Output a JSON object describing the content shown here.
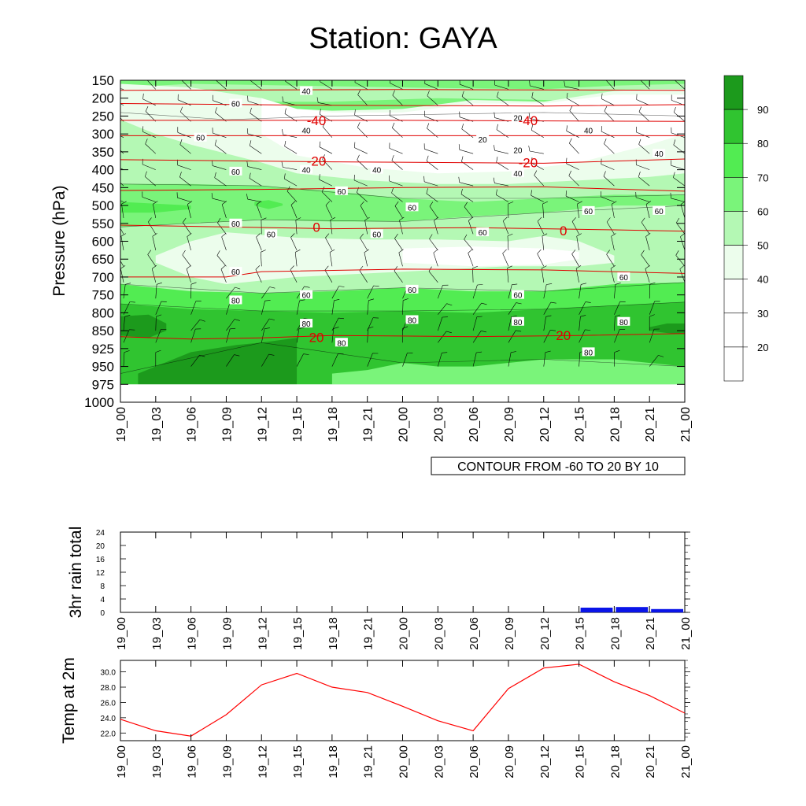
{
  "title": "Station: GAYA",
  "time_labels": [
    "19_00",
    "19_03",
    "19_06",
    "19_09",
    "19_12",
    "19_15",
    "19_18",
    "19_21",
    "20_00",
    "20_03",
    "20_06",
    "20_09",
    "20_12",
    "20_15",
    "20_18",
    "20_21",
    "21_00"
  ],
  "chart_data": [
    {
      "type": "heatmap",
      "name": "pressure-time cross section",
      "ylabel": "Pressure (hPa)",
      "pressure_levels": [
        150,
        200,
        250,
        300,
        350,
        400,
        450,
        500,
        550,
        600,
        650,
        700,
        750,
        800,
        850,
        925,
        950,
        975,
        1000
      ],
      "fill_levels": [
        20,
        30,
        40,
        50,
        60,
        70,
        80,
        90
      ],
      "fill_colors": [
        "#ffffff",
        "#ffffff",
        "#ffffff",
        "#ecfdec",
        "#b4f8b4",
        "#7af47a",
        "#52ec52",
        "#30c430",
        "#1c9a1c"
      ],
      "humidity_labels": [
        {
          "value": 40,
          "time": "19_15",
          "p": 180
        },
        {
          "value": 60,
          "time": "19_09",
          "p": 215
        },
        {
          "value": 40,
          "time": "19_15",
          "p": 290
        },
        {
          "value": 60,
          "time": "19_06",
          "p": 310
        },
        {
          "value": 20,
          "time": "20_09",
          "p": 255
        },
        {
          "value": 20,
          "time": "20_06",
          "p": 315
        },
        {
          "value": 20,
          "time": "20_09",
          "p": 345
        },
        {
          "value": 40,
          "time": "20_15",
          "p": 290
        },
        {
          "value": 40,
          "time": "20_21",
          "p": 355
        },
        {
          "value": 40,
          "time": "19_15",
          "p": 400
        },
        {
          "value": 40,
          "time": "19_21",
          "p": 400
        },
        {
          "value": 40,
          "time": "20_09",
          "p": 410
        },
        {
          "value": 60,
          "time": "19_09",
          "p": 405
        },
        {
          "value": 60,
          "time": "19_18",
          "p": 460
        },
        {
          "value": 60,
          "time": "20_00",
          "p": 505
        },
        {
          "value": 60,
          "time": "20_15",
          "p": 515
        },
        {
          "value": 60,
          "time": "20_21",
          "p": 515
        },
        {
          "value": 60,
          "time": "19_09",
          "p": 550
        },
        {
          "value": 60,
          "time": "19_12",
          "p": 580
        },
        {
          "value": 60,
          "time": "19_21",
          "p": 580
        },
        {
          "value": 60,
          "time": "20_06",
          "p": 575
        },
        {
          "value": 60,
          "time": "19_09",
          "p": 685
        },
        {
          "value": 60,
          "time": "20_18",
          "p": 700
        },
        {
          "value": 60,
          "time": "19_15",
          "p": 750
        },
        {
          "value": 60,
          "time": "20_00",
          "p": 735
        },
        {
          "value": 60,
          "time": "20_09",
          "p": 750
        },
        {
          "value": 80,
          "time": "19_09",
          "p": 765
        },
        {
          "value": 80,
          "time": "19_15",
          "p": 830
        },
        {
          "value": 80,
          "time": "20_00",
          "p": 820
        },
        {
          "value": 80,
          "time": "20_09",
          "p": 825
        },
        {
          "value": 80,
          "time": "20_18",
          "p": 825
        },
        {
          "value": 80,
          "time": "19_18",
          "p": 900
        },
        {
          "value": 80,
          "time": "20_15",
          "p": 930
        }
      ],
      "temperature_contour_labels": [
        {
          "value": "-40",
          "time": "19_15",
          "p": 262
        },
        {
          "value": "-40",
          "time": "20_09",
          "p": 262
        },
        {
          "value": "-20",
          "time": "19_15",
          "p": 375
        },
        {
          "value": "-20",
          "time": "20_09",
          "p": 380
        },
        {
          "value": "0",
          "time": "19_15",
          "p": 560
        },
        {
          "value": "0",
          "time": "20_12",
          "p": 570
        },
        {
          "value": "20",
          "time": "19_15",
          "p": 878
        },
        {
          "value": "20",
          "time": "20_12",
          "p": 870
        }
      ],
      "contour_note": "CONTOUR FROM -60 TO 20 BY 10"
    },
    {
      "type": "bar",
      "name": "3hr rain total",
      "ylabel": "3hr rain total",
      "ylim": [
        0,
        24
      ],
      "yticks": [
        "0",
        "4",
        "8",
        "12",
        "16",
        "20",
        "24"
      ],
      "categories": [
        "19_00",
        "19_03",
        "19_06",
        "19_09",
        "19_12",
        "19_15",
        "19_18",
        "19_21",
        "20_00",
        "20_03",
        "20_06",
        "20_09",
        "20_12",
        "20_15",
        "20_18",
        "20_21"
      ],
      "values": [
        0,
        0.1,
        0,
        0,
        0,
        0.1,
        0,
        0,
        0,
        0,
        0,
        0,
        0,
        1.4,
        1.6,
        1.0
      ]
    },
    {
      "type": "line",
      "name": "Temp at 2m",
      "ylabel": "Temp at 2m",
      "ylim": [
        21.0,
        31.5
      ],
      "yticks": [
        "22.0",
        "24.0",
        "26.0",
        "28.0",
        "30.0"
      ],
      "color": "#ff0000",
      "x": [
        "19_00",
        "19_03",
        "19_06",
        "19_09",
        "19_12",
        "19_15",
        "19_18",
        "19_21",
        "20_00",
        "20_03",
        "20_06",
        "20_09",
        "20_12",
        "20_15",
        "20_18",
        "20_21",
        "21_00"
      ],
      "values": [
        23.8,
        22.3,
        21.6,
        24.4,
        28.3,
        29.8,
        28.0,
        27.3,
        25.5,
        23.6,
        22.3,
        27.8,
        30.5,
        31.0,
        28.7,
        26.9,
        24.6
      ]
    }
  ]
}
